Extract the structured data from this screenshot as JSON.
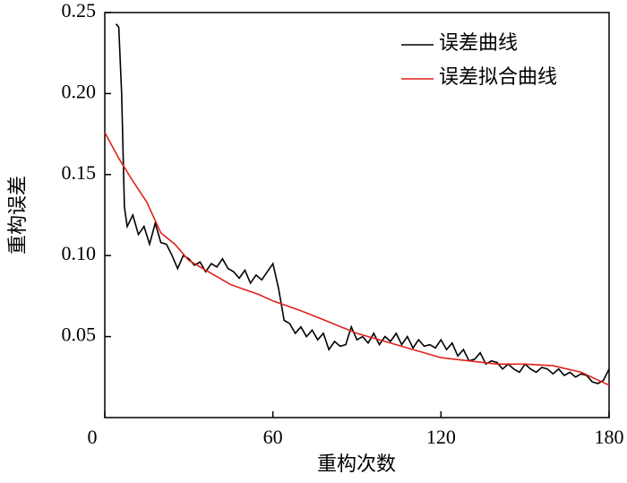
{
  "chart_data": {
    "type": "line",
    "xlabel": "重构次数",
    "ylabel": "重构误差",
    "xlim": [
      0,
      180
    ],
    "xticks": [
      0,
      60,
      120,
      180
    ],
    "ylim": [
      0,
      0.25
    ],
    "yticks": [
      0.05,
      {
        "value": 0.1,
        "label": "0.10"
      },
      0.15,
      {
        "value": 0.2,
        "label": "0.20"
      },
      0.25
    ],
    "legend": "upper right",
    "series": [
      {
        "name": "误差曲线",
        "color": "#000000",
        "x": [
          4,
          5,
          6,
          7,
          8,
          10,
          12,
          14,
          16,
          18,
          20,
          22,
          24,
          26,
          28,
          30,
          32,
          34,
          36,
          38,
          40,
          42,
          44,
          46,
          48,
          50,
          52,
          54,
          56,
          58,
          60,
          62,
          64,
          66,
          68,
          70,
          72,
          74,
          76,
          78,
          80,
          82,
          84,
          86,
          88,
          90,
          92,
          94,
          96,
          98,
          100,
          102,
          104,
          106,
          108,
          110,
          112,
          114,
          116,
          118,
          120,
          122,
          124,
          126,
          128,
          130,
          132,
          134,
          136,
          138,
          140,
          142,
          144,
          146,
          148,
          150,
          152,
          154,
          156,
          158,
          160,
          162,
          164,
          166,
          168,
          170,
          172,
          174,
          176,
          178,
          180
        ],
        "values": [
          0.243,
          0.241,
          0.2,
          0.13,
          0.118,
          0.125,
          0.113,
          0.118,
          0.107,
          0.12,
          0.108,
          0.107,
          0.1,
          0.092,
          0.1,
          0.098,
          0.094,
          0.096,
          0.09,
          0.095,
          0.093,
          0.098,
          0.092,
          0.09,
          0.086,
          0.091,
          0.083,
          0.088,
          0.085,
          0.09,
          0.095,
          0.08,
          0.06,
          0.058,
          0.052,
          0.056,
          0.05,
          0.054,
          0.048,
          0.052,
          0.042,
          0.047,
          0.044,
          0.045,
          0.056,
          0.048,
          0.05,
          0.046,
          0.052,
          0.045,
          0.05,
          0.047,
          0.052,
          0.045,
          0.05,
          0.043,
          0.048,
          0.044,
          0.045,
          0.043,
          0.048,
          0.042,
          0.046,
          0.038,
          0.042,
          0.035,
          0.036,
          0.04,
          0.033,
          0.035,
          0.034,
          0.03,
          0.033,
          0.03,
          0.028,
          0.033,
          0.03,
          0.028,
          0.031,
          0.03,
          0.027,
          0.03,
          0.026,
          0.028,
          0.025,
          0.027,
          0.026,
          0.022,
          0.021,
          0.023,
          0.03
        ]
      },
      {
        "name": "误差拟合曲线",
        "color": "#e0201b",
        "x": [
          0,
          5,
          10,
          15,
          20,
          25,
          30,
          35,
          40,
          45,
          50,
          55,
          60,
          70,
          80,
          90,
          100,
          110,
          120,
          130,
          140,
          150,
          160,
          170,
          180
        ],
        "values": [
          0.176,
          0.16,
          0.146,
          0.133,
          0.114,
          0.107,
          0.097,
          0.092,
          0.087,
          0.082,
          0.079,
          0.076,
          0.072,
          0.066,
          0.059,
          0.052,
          0.047,
          0.042,
          0.037,
          0.035,
          0.033,
          0.033,
          0.032,
          0.028,
          0.02
        ]
      }
    ]
  }
}
